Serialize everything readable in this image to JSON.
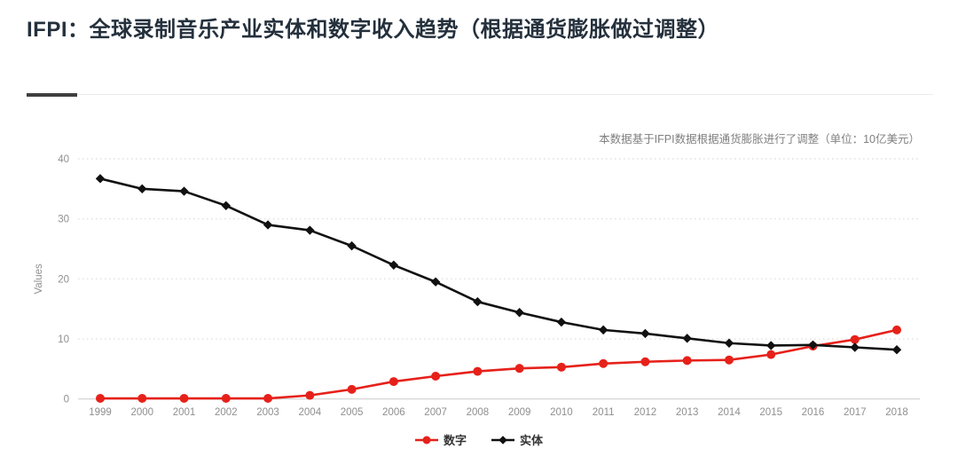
{
  "header": {
    "title": "IFPI：全球录制音乐产业实体和数字收入趋势（根据通货膨胀做过调整）"
  },
  "chart_data": {
    "type": "line",
    "title": "IFPI：全球录制音乐产业实体和数字收入趋势（根据通货膨胀做过调整）",
    "annotation": "本数据基于IFPI数据根据通货膨胀进行了调整（单位：10亿美元）",
    "xlabel": "",
    "ylabel": "Values",
    "ylim": [
      0,
      40
    ],
    "yticks": [
      0,
      10,
      20,
      30,
      40
    ],
    "grid": "horizontal-dotted",
    "legend_position": "bottom-center",
    "categories": [
      1999,
      2000,
      2001,
      2002,
      2003,
      2004,
      2005,
      2006,
      2007,
      2008,
      2009,
      2010,
      2011,
      2012,
      2013,
      2014,
      2015,
      2016,
      2017,
      2018
    ],
    "series": [
      {
        "id": "digital",
        "name": "数字",
        "marker": "circle",
        "color": "#e6211a",
        "values": [
          0.1,
          0.1,
          0.1,
          0.1,
          0.1,
          0.6,
          1.6,
          2.9,
          3.8,
          4.6,
          5.1,
          5.3,
          5.9,
          6.2,
          6.4,
          6.5,
          7.4,
          8.8,
          9.9,
          11.5
        ]
      },
      {
        "id": "physical",
        "name": "实体",
        "marker": "diamond",
        "color": "#111111",
        "values": [
          36.7,
          35.0,
          34.6,
          32.2,
          29.0,
          28.1,
          25.5,
          22.3,
          19.5,
          16.2,
          14.4,
          12.8,
          11.5,
          10.9,
          10.1,
          9.3,
          8.9,
          9.0,
          8.6,
          8.2
        ]
      }
    ]
  },
  "styles": {
    "title_color": "#24303c",
    "divider_accent": "#3f3f3f",
    "divider_line": "#ebebeb",
    "tick_color": "#8f8f8f",
    "note_color": "#808080",
    "grid_color": "#e2e2e2",
    "axis_color": "#d0d0d0",
    "legend_text_color": "#333333"
  }
}
